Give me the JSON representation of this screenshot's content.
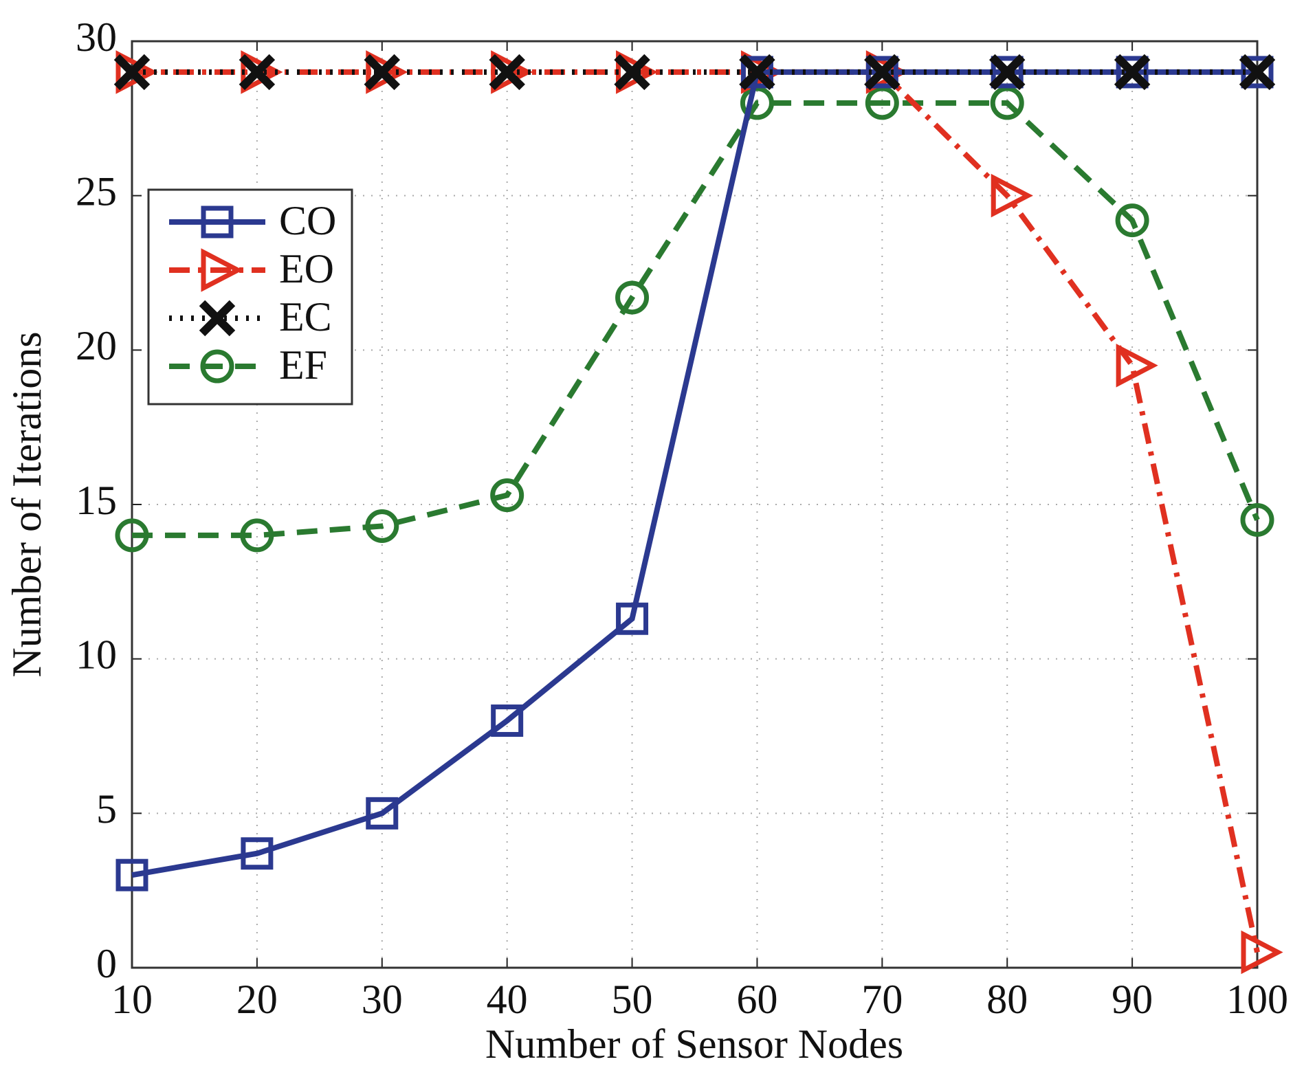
{
  "chart_data": {
    "type": "line",
    "x_label": "Number of Sensor Nodes",
    "y_label": "Number of Iterations",
    "x": [
      10,
      20,
      30,
      40,
      50,
      60,
      70,
      80,
      90,
      100
    ],
    "series": [
      {
        "name": "CO",
        "color": "#2b3990",
        "values": [
          3,
          3.7,
          5,
          8,
          11.3,
          29,
          29,
          29,
          29,
          29
        ]
      },
      {
        "name": "EO",
        "color": "#e03020",
        "values": [
          29,
          29,
          29,
          29,
          29,
          29,
          29,
          25,
          19.5,
          0.5
        ]
      },
      {
        "name": "EC",
        "color": "#111111",
        "values": [
          29,
          29,
          29,
          29,
          29,
          29,
          29,
          29,
          29,
          29
        ]
      },
      {
        "name": "EF",
        "color": "#2a7a30",
        "values": [
          14,
          14,
          14.3,
          15.3,
          21.7,
          28,
          28,
          28,
          24.2,
          14.5
        ]
      }
    ],
    "xlim": [
      10,
      100
    ],
    "xticks": [
      10,
      20,
      30,
      40,
      50,
      60,
      70,
      80,
      90,
      100
    ],
    "ylim": [
      0,
      30
    ],
    "yticks": [
      0,
      5,
      10,
      15,
      20,
      25,
      30
    ],
    "grid": true,
    "legend": "upper left"
  }
}
